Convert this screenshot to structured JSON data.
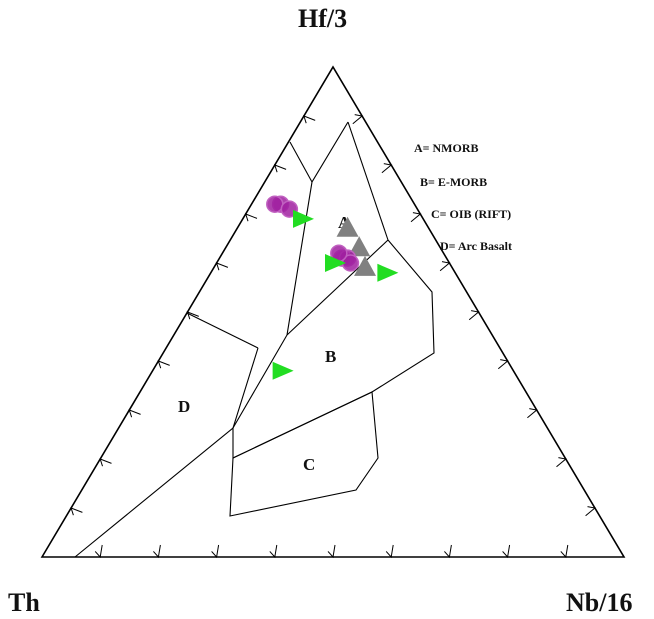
{
  "diagram": {
    "type": "ternary",
    "apex_labels": {
      "top": "Hf/3",
      "left": "Th",
      "right": "Nb/16"
    },
    "legend": [
      "A= NMORB",
      "B= E-MORB",
      "C= OIB (RIFT)",
      "D= Arc Basalt"
    ],
    "regions": [
      {
        "label": "A",
        "name": "NMORB"
      },
      {
        "label": "B",
        "name": "E-MORB"
      },
      {
        "label": "C",
        "name": "OIB (RIFT)"
      },
      {
        "label": "D",
        "name": "Arc Basalt"
      }
    ],
    "ticks_per_side": 9,
    "colors": {
      "frame": "#000000",
      "circle_marker": "#a020a0",
      "green_marker": "#22dd22",
      "gray_marker": "#808080"
    },
    "samples": {
      "circles": [
        {
          "Hf3": 0.72,
          "Th": 0.23
        },
        {
          "Hf3": 0.72,
          "Th": 0.24
        },
        {
          "Hf3": 0.71,
          "Th": 0.22
        },
        {
          "Hf3": 0.61,
          "Th": 0.18
        },
        {
          "Hf3": 0.61,
          "Th": 0.17
        },
        {
          "Hf3": 0.6,
          "Th": 0.17
        },
        {
          "Hf3": 0.62,
          "Th": 0.18
        }
      ],
      "green_triangles": [
        {
          "Hf3": 0.69,
          "Th": 0.21
        },
        {
          "Hf3": 0.6,
          "Th": 0.2
        },
        {
          "Hf3": 0.58,
          "Th": 0.12
        },
        {
          "Hf3": 0.38,
          "Th": 0.4
        }
      ],
      "gray_triangles": [
        {
          "Hf3": 0.67,
          "Th": 0.14
        },
        {
          "Hf3": 0.63,
          "Th": 0.14
        },
        {
          "Hf3": 0.59,
          "Th": 0.15
        }
      ]
    }
  }
}
